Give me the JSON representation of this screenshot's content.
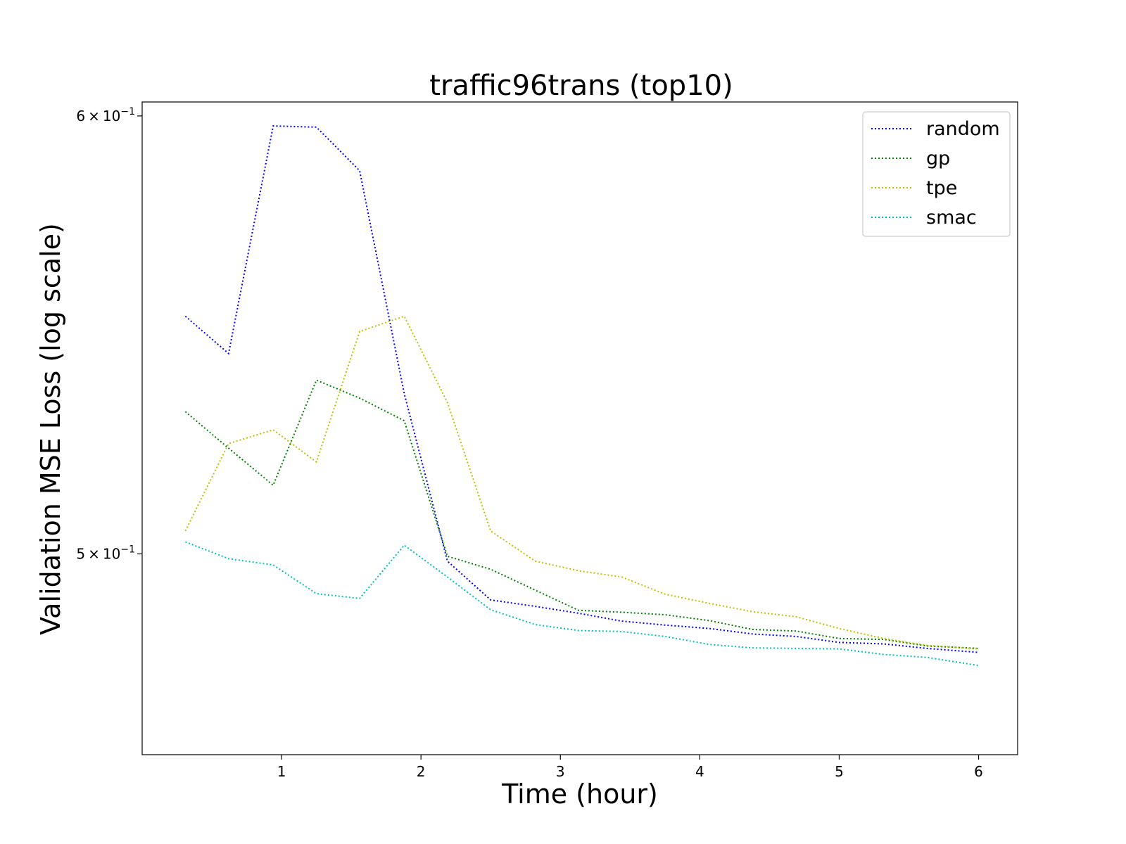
{
  "chart_data": {
    "type": "line",
    "title": "traffic96trans (top10)",
    "xlabel": "Time (hour)",
    "ylabel": "Validation MSE Loss (log scale)",
    "yscale": "log",
    "xlim": [
      0.0,
      6.28
    ],
    "ylim": [
      0.4599,
      0.6035
    ],
    "x_ticks": [
      1,
      2,
      3,
      4,
      5,
      6
    ],
    "x_tick_labels": [
      "1",
      "2",
      "3",
      "4",
      "5",
      "6"
    ],
    "y_ticks": [
      0.5,
      0.6
    ],
    "y_tick_labels": [
      {
        "mantissa": "5",
        "times": "×",
        "base": "10",
        "exponent": "−1"
      },
      {
        "mantissa": "6",
        "times": "×",
        "base": "10",
        "exponent": "−1"
      }
    ],
    "grid": false,
    "legend_position": "top-right",
    "x": [
      0.31,
      0.62,
      0.94,
      1.25,
      1.56,
      1.88,
      2.19,
      2.5,
      2.82,
      3.13,
      3.44,
      3.75,
      4.07,
      4.38,
      4.69,
      5.0,
      5.32,
      5.63,
      6.0
    ],
    "series": [
      {
        "name": "random",
        "color": "#0000ff",
        "values": [
          0.552,
          0.5435,
          0.5975,
          0.5972,
          0.5865,
          0.5345,
          0.4985,
          0.4905,
          0.4892,
          0.4878,
          0.4862,
          0.4854,
          0.4847,
          0.4836,
          0.4831,
          0.4819,
          0.4816,
          0.4807,
          0.4799
        ]
      },
      {
        "name": "gp",
        "color": "#008000",
        "values": [
          0.5305,
          0.5225,
          0.5145,
          0.5375,
          0.5335,
          0.5285,
          0.4995,
          0.4968,
          0.4925,
          0.4884,
          0.488,
          0.4875,
          0.4863,
          0.4845,
          0.4842,
          0.4827,
          0.4825,
          0.4812,
          0.4807
        ]
      },
      {
        "name": "tpe",
        "color": "#bfbf00",
        "values": [
          0.5048,
          0.5235,
          0.5265,
          0.5195,
          0.5485,
          0.552,
          0.5325,
          0.5048,
          0.4985,
          0.4965,
          0.4952,
          0.4917,
          0.4898,
          0.4881,
          0.4871,
          0.4847,
          0.4827,
          0.4813,
          0.4806
        ]
      },
      {
        "name": "smac",
        "color": "#00bfbf",
        "values": [
          0.5025,
          0.499,
          0.4977,
          0.4918,
          0.4908,
          0.5018,
          0.4952,
          0.4885,
          0.4855,
          0.4843,
          0.4841,
          0.4831,
          0.4815,
          0.4808,
          0.4807,
          0.4806,
          0.4795,
          0.4789,
          0.4773
        ]
      }
    ]
  }
}
